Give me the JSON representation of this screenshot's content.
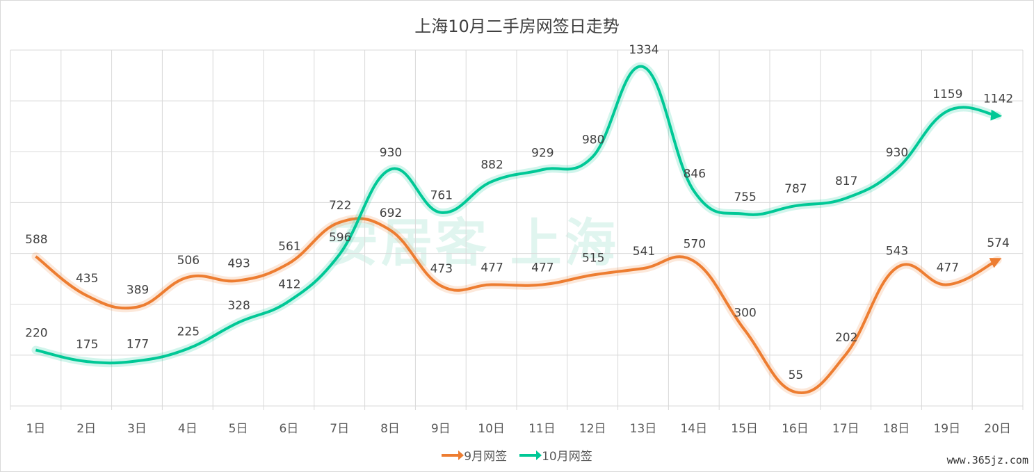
{
  "chart_data": {
    "type": "line",
    "title": "上海10月二手房网签日走势",
    "categories": [
      "1日",
      "2日",
      "3日",
      "4日",
      "5日",
      "6日",
      "7日",
      "8日",
      "9日",
      "10日",
      "11日",
      "12日",
      "13日",
      "14日",
      "15日",
      "16日",
      "17日",
      "18日",
      "19日",
      "20日"
    ],
    "series": [
      {
        "name": "9月网签",
        "color": "#ed7d31",
        "values": [
          588,
          435,
          389,
          506,
          493,
          561,
          722,
          692,
          473,
          477,
          477,
          515,
          541,
          570,
          300,
          55,
          202,
          543,
          477,
          574
        ]
      },
      {
        "name": "10月网签",
        "color": "#00c896",
        "values": [
          220,
          175,
          177,
          225,
          328,
          412,
          596,
          930,
          761,
          882,
          929,
          980,
          1334,
          846,
          755,
          787,
          817,
          930,
          1159,
          1142
        ]
      }
    ],
    "ylim": [
      0,
      1400
    ],
    "grid": true,
    "legend": "bottom"
  },
  "watermark_bg": "安居客 上海",
  "watermark_url": "www.365jz.com"
}
